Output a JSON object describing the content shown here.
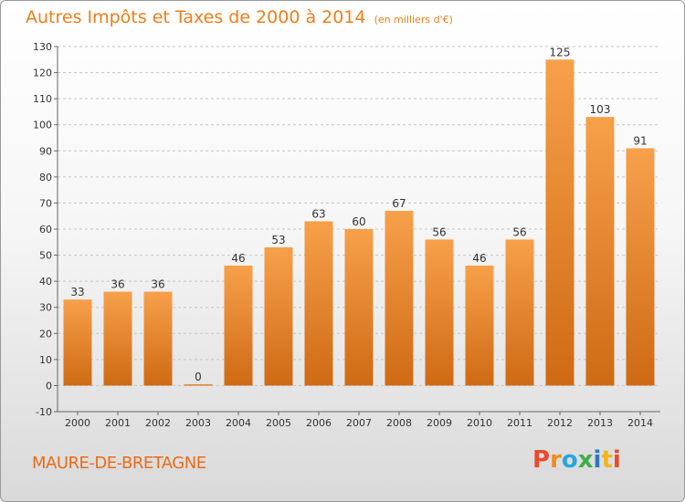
{
  "chart_data": {
    "type": "bar",
    "title": "Autres Impôts et Taxes de 2000 à 2014",
    "unit": "(en milliers d'€)",
    "categories": [
      "2000",
      "2001",
      "2002",
      "2003",
      "2004",
      "2005",
      "2006",
      "2007",
      "2008",
      "2009",
      "2010",
      "2011",
      "2012",
      "2013",
      "2014"
    ],
    "values": [
      33,
      36,
      36,
      0,
      46,
      53,
      63,
      60,
      67,
      56,
      46,
      56,
      125,
      103,
      91
    ],
    "ylim": [
      -10,
      130
    ],
    "yticks": [
      -10,
      0,
      10,
      20,
      30,
      40,
      50,
      60,
      70,
      80,
      90,
      100,
      110,
      120,
      130
    ],
    "grid": "horizontal dashed",
    "bar_color_light": "#f7a04a",
    "bar_color_dark": "#cf6a14"
  },
  "footer": {
    "commune": "MAURE-DE-BRETAGNE",
    "logo_text": "Proxiti"
  }
}
